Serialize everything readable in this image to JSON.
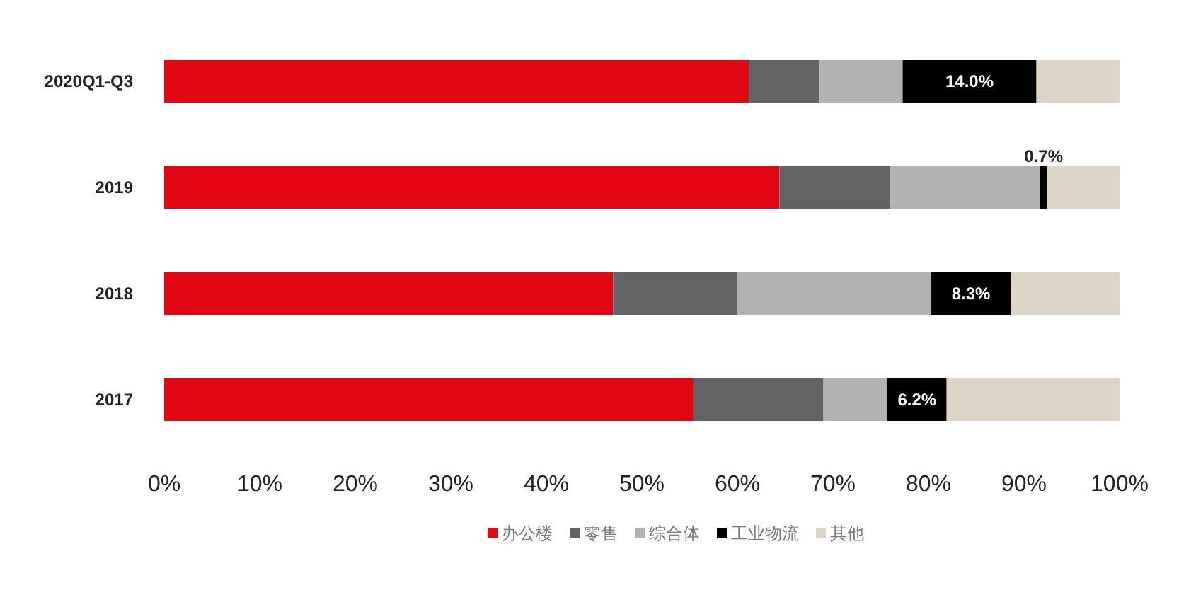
{
  "chart_data": {
    "type": "bar",
    "orientation": "horizontal",
    "stacked": true,
    "categories": [
      "2020Q1-Q3",
      "2019",
      "2018",
      "2017"
    ],
    "series": [
      {
        "name": "办公楼",
        "color": "#e30613",
        "values": [
          61.2,
          64.4,
          47.0,
          55.4
        ]
      },
      {
        "name": "零售",
        "color": "#636366",
        "values": [
          7.4,
          11.6,
          13.0,
          13.6
        ]
      },
      {
        "name": "综合体",
        "color": "#b2b2b2",
        "values": [
          8.7,
          15.7,
          20.3,
          6.7
        ]
      },
      {
        "name": "工业物流",
        "color": "#000000",
        "values": [
          14.0,
          0.7,
          8.3,
          6.2
        ],
        "value_labels": [
          "14.0%",
          "0.7%",
          "8.3%",
          "6.2%"
        ]
      },
      {
        "name": "其他",
        "color": "#ddd5c6",
        "values": [
          8.7,
          7.6,
          11.4,
          18.1
        ]
      }
    ],
    "xlim": [
      0,
      100
    ],
    "xticks": [
      {
        "value": 0,
        "label": "0%"
      },
      {
        "value": 10,
        "label": "10%"
      },
      {
        "value": 20,
        "label": "20%"
      },
      {
        "value": 30,
        "label": "30%"
      },
      {
        "value": 40,
        "label": "40%"
      },
      {
        "value": 50,
        "label": "50%"
      },
      {
        "value": 60,
        "label": "60%"
      },
      {
        "value": 70,
        "label": "70%"
      },
      {
        "value": 80,
        "label": "80%"
      },
      {
        "value": 90,
        "label": "90%"
      },
      {
        "value": 100,
        "label": "100%"
      }
    ],
    "legend": "bottom",
    "grid": false
  }
}
